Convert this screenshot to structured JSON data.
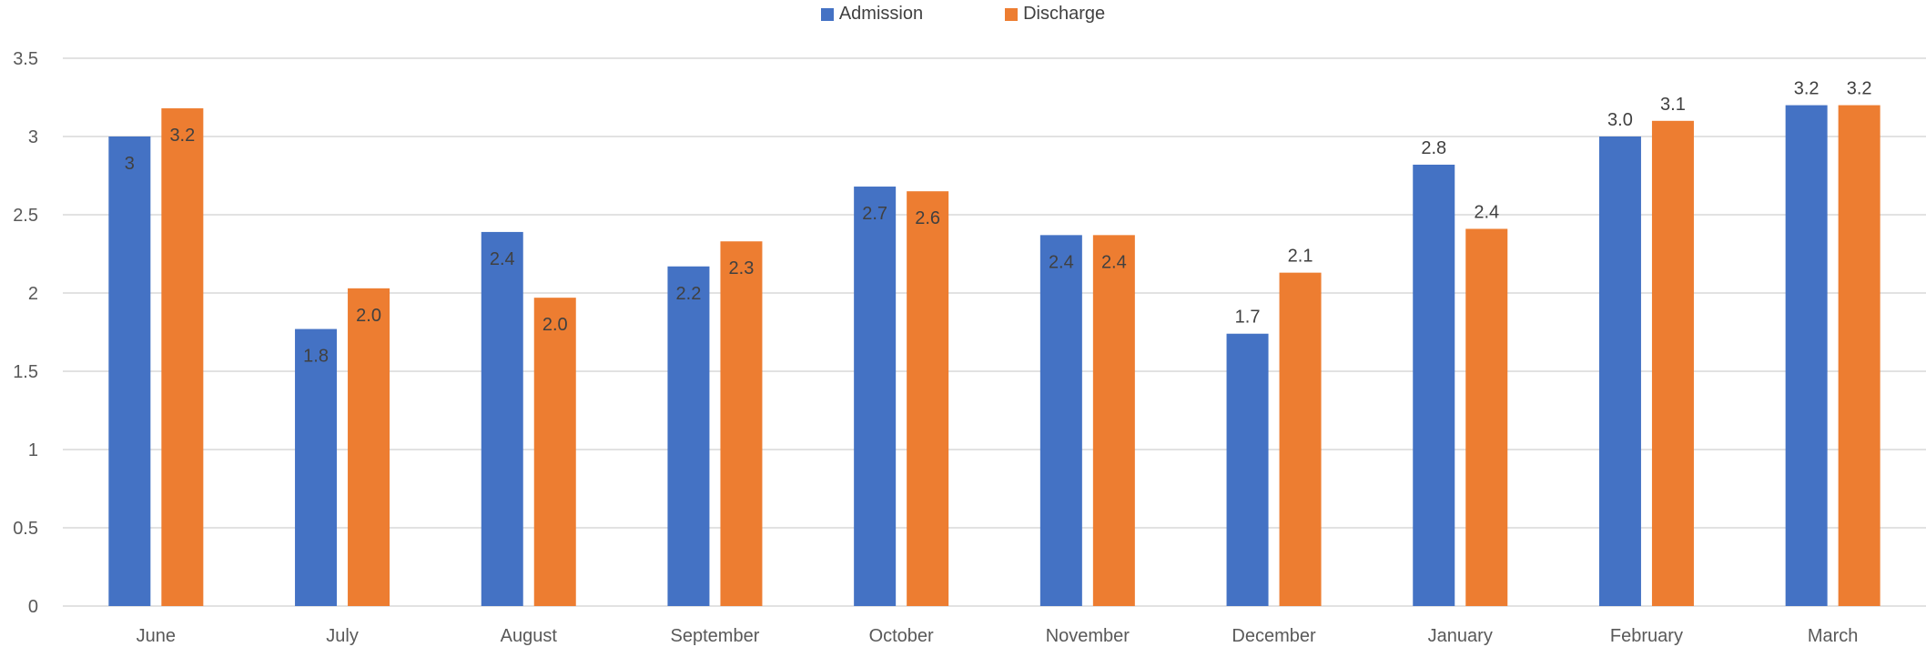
{
  "chart_data": {
    "type": "bar",
    "categories": [
      "June",
      "July",
      "August",
      "September",
      "October",
      "November",
      "December",
      "January",
      "February",
      "March"
    ],
    "series": [
      {
        "name": "Admission",
        "color": "#4472C4",
        "values": [
          3.0,
          1.77,
          2.39,
          2.17,
          2.68,
          2.37,
          1.74,
          2.82,
          3.0,
          3.2
        ],
        "labels": [
          "3",
          "1.8",
          "2.4",
          "2.2",
          "2.7",
          "2.4",
          "1.7",
          "2.8",
          "3.0",
          "3.2"
        ]
      },
      {
        "name": "Discharge",
        "color": "#ED7D31",
        "values": [
          3.18,
          2.03,
          1.97,
          2.33,
          2.65,
          2.37,
          2.13,
          2.41,
          3.1,
          3.2
        ],
        "labels": [
          "3.2",
          "2.0",
          "2.0",
          "2.3",
          "2.6",
          "2.4",
          "2.1",
          "2.4",
          "3.1",
          "3.2"
        ]
      }
    ],
    "label_position": [
      [
        "inside",
        "inside"
      ],
      [
        "inside",
        "inside"
      ],
      [
        "inside",
        "inside"
      ],
      [
        "inside",
        "inside"
      ],
      [
        "inside",
        "inside"
      ],
      [
        "inside",
        "inside"
      ],
      [
        "outside",
        "outside"
      ],
      [
        "outside",
        "outside"
      ],
      [
        "outside",
        "outside"
      ],
      [
        "outside",
        "outside"
      ]
    ],
    "ylim": [
      0,
      3.5
    ],
    "yticks": [
      "0",
      "0.5",
      "1",
      "1.5",
      "2",
      "2.5",
      "3",
      "3.5"
    ],
    "grid": true,
    "legend_position": "top"
  }
}
